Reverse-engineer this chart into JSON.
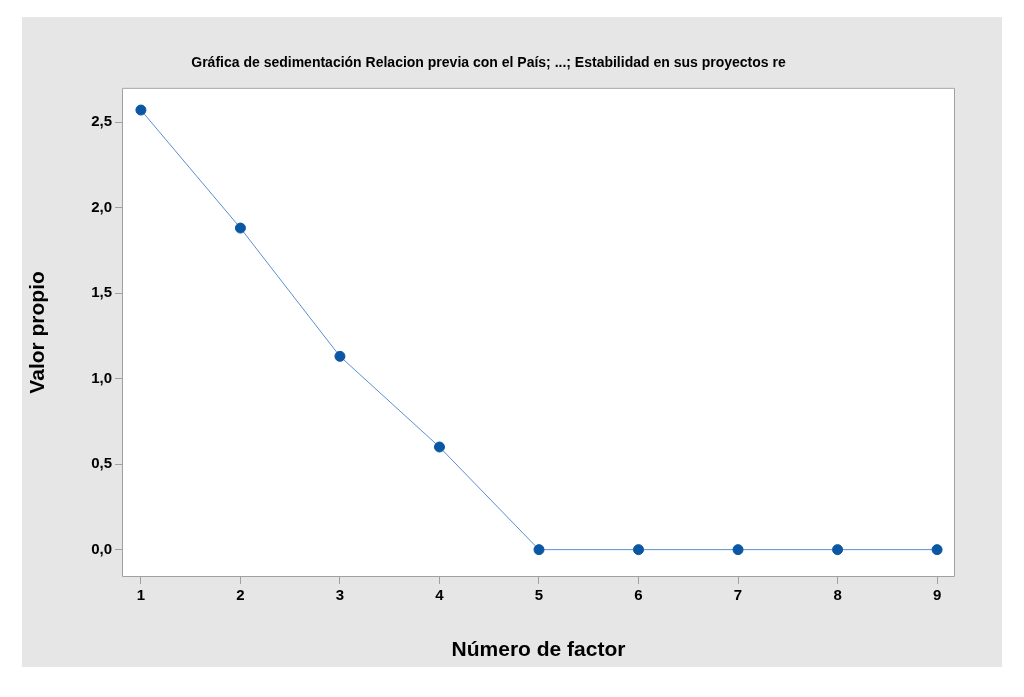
{
  "chart_data": {
    "type": "line",
    "title": "Gráfica de sedimentación Relacion previa con el País; ...; Estabilidad en sus proyectos re",
    "xlabel": "Número de factor",
    "ylabel": "Valor propio",
    "x": [
      1,
      2,
      3,
      4,
      5,
      6,
      7,
      8,
      9
    ],
    "series": [
      {
        "color": "#0b57a4",
        "values": [
          2.57,
          1.88,
          1.13,
          0.6,
          0,
          0,
          0,
          0,
          0
        ]
      }
    ],
    "xlim": [
      0.81,
      9.18
    ],
    "xticks": [
      1,
      2,
      3,
      4,
      5,
      6,
      7,
      8,
      9
    ],
    "ylim": [
      -0.16,
      2.7
    ],
    "yticks": [
      {
        "value": 0,
        "label": "0,0"
      },
      {
        "value": 0.5,
        "label": "0,5"
      },
      {
        "value": 1,
        "label": "1,0"
      },
      {
        "value": 1.5,
        "label": "1,5"
      },
      {
        "value": 2,
        "label": "2,0"
      },
      {
        "value": 2.5,
        "label": "2,5"
      }
    ],
    "grid": false,
    "legend": false,
    "marker": "circle",
    "line_style": "solid"
  }
}
